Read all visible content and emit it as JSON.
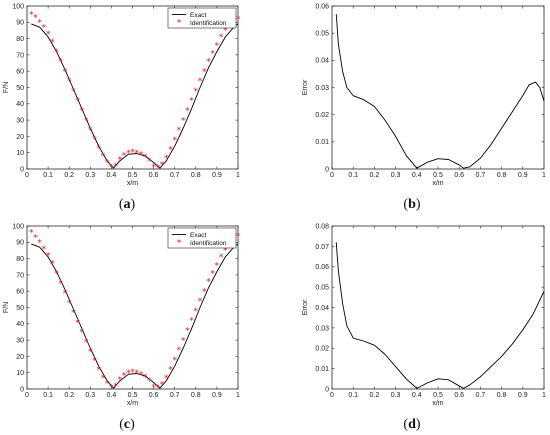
{
  "captions": [
    "a",
    "b",
    "c",
    "d"
  ],
  "colors": {
    "exact": "#000000",
    "ident": "#e31a1c",
    "axis": "#262626"
  },
  "chart_data": [
    {
      "type": "line",
      "caption": "a",
      "xlabel": "x/m",
      "ylabel": "F/N",
      "xlim": [
        0,
        1
      ],
      "ylim": [
        0,
        100
      ],
      "xticks": [
        0,
        0.1,
        0.2,
        0.3,
        0.4,
        0.5,
        0.6,
        0.7,
        0.8,
        0.9,
        1
      ],
      "yticks": [
        0,
        10,
        20,
        30,
        40,
        50,
        60,
        70,
        80,
        90,
        100
      ],
      "legend": "top-right",
      "series": [
        {
          "name": "Exact",
          "style": "line",
          "x": [
            0.02,
            0.06,
            0.1,
            0.14,
            0.18,
            0.22,
            0.26,
            0.3,
            0.34,
            0.38,
            0.41,
            0.44,
            0.48,
            0.52,
            0.56,
            0.6,
            0.63,
            0.66,
            0.7,
            0.74,
            0.78,
            0.82,
            0.86,
            0.9,
            0.94,
            0.98,
            1.0
          ],
          "y": [
            89,
            87,
            81,
            72,
            61,
            49,
            37,
            25,
            14,
            5,
            0.5,
            5,
            9,
            9.5,
            8,
            4,
            0.5,
            5,
            14,
            25,
            37,
            50,
            62,
            72,
            81,
            87,
            89
          ]
        },
        {
          "name": "Identification",
          "style": "marker",
          "x": [
            0.02,
            0.04,
            0.06,
            0.08,
            0.1,
            0.12,
            0.14,
            0.16,
            0.18,
            0.2,
            0.22,
            0.24,
            0.26,
            0.28,
            0.3,
            0.32,
            0.34,
            0.36,
            0.38,
            0.4,
            0.42,
            0.44,
            0.46,
            0.48,
            0.5,
            0.52,
            0.54,
            0.56,
            0.58,
            0.6,
            0.62,
            0.64,
            0.66,
            0.68,
            0.7,
            0.72,
            0.74,
            0.76,
            0.78,
            0.8,
            0.82,
            0.84,
            0.86,
            0.88,
            0.9,
            0.92,
            0.94,
            0.96,
            0.98,
            1.0
          ],
          "y": [
            95,
            93,
            90,
            87,
            83,
            78,
            72,
            66,
            60,
            54,
            48,
            42,
            36,
            30,
            24,
            18.5,
            13,
            8,
            4,
            1,
            2,
            6,
            8.5,
            10,
            10.5,
            10,
            9,
            7.5,
            5,
            1.5,
            1,
            3,
            7,
            12,
            18,
            24,
            30,
            36,
            42,
            48,
            54,
            60,
            66,
            71,
            76,
            81,
            85,
            88,
            90,
            92
          ]
        }
      ]
    },
    {
      "type": "line",
      "caption": "b",
      "xlabel": "x/m",
      "ylabel": "Error",
      "xlim": [
        0,
        1
      ],
      "ylim": [
        0,
        0.06
      ],
      "xticks": [
        0,
        0.1,
        0.2,
        0.3,
        0.4,
        0.5,
        0.6,
        0.7,
        0.8,
        0.9,
        1
      ],
      "yticks": [
        0,
        0.01,
        0.02,
        0.03,
        0.04,
        0.05,
        0.06
      ],
      "series": [
        {
          "style": "line",
          "x": [
            0.02,
            0.03,
            0.05,
            0.07,
            0.1,
            0.15,
            0.2,
            0.25,
            0.3,
            0.35,
            0.4,
            0.45,
            0.5,
            0.55,
            0.6,
            0.62,
            0.65,
            0.7,
            0.75,
            0.8,
            0.85,
            0.9,
            0.93,
            0.96,
            0.98,
            1.0
          ],
          "y": [
            0.057,
            0.046,
            0.036,
            0.03,
            0.027,
            0.0255,
            0.023,
            0.018,
            0.012,
            0.005,
            0.0003,
            0.0025,
            0.0038,
            0.0035,
            0.0015,
            0.0003,
            0.0008,
            0.004,
            0.009,
            0.015,
            0.021,
            0.027,
            0.031,
            0.032,
            0.03,
            0.025
          ]
        }
      ]
    },
    {
      "type": "line",
      "caption": "c",
      "xlabel": "x/m",
      "ylabel": "F/N",
      "xlim": [
        0,
        1
      ],
      "ylim": [
        0,
        100
      ],
      "xticks": [
        0,
        0.1,
        0.2,
        0.3,
        0.4,
        0.5,
        0.6,
        0.7,
        0.8,
        0.9,
        1
      ],
      "yticks": [
        0,
        10,
        20,
        30,
        40,
        50,
        60,
        70,
        80,
        90,
        100
      ],
      "legend": "top-right",
      "series": [
        {
          "name": "Exact",
          "style": "line",
          "x": [
            0.02,
            0.06,
            0.1,
            0.14,
            0.18,
            0.22,
            0.26,
            0.3,
            0.34,
            0.38,
            0.41,
            0.44,
            0.48,
            0.52,
            0.56,
            0.6,
            0.63,
            0.66,
            0.7,
            0.74,
            0.78,
            0.82,
            0.86,
            0.9,
            0.94,
            0.98,
            1.0
          ],
          "y": [
            89,
            87,
            81,
            72,
            61,
            49,
            37,
            25,
            14,
            5,
            0.5,
            5,
            9,
            9.5,
            8,
            4,
            0.5,
            5,
            14,
            25,
            37,
            50,
            62,
            72,
            81,
            87,
            89
          ]
        },
        {
          "name": "Identification",
          "style": "marker",
          "x": [
            0.02,
            0.04,
            0.06,
            0.08,
            0.1,
            0.12,
            0.14,
            0.16,
            0.18,
            0.2,
            0.22,
            0.24,
            0.26,
            0.28,
            0.3,
            0.32,
            0.34,
            0.36,
            0.38,
            0.4,
            0.42,
            0.44,
            0.46,
            0.48,
            0.5,
            0.52,
            0.54,
            0.56,
            0.58,
            0.6,
            0.62,
            0.64,
            0.66,
            0.68,
            0.7,
            0.72,
            0.74,
            0.76,
            0.78,
            0.8,
            0.82,
            0.84,
            0.86,
            0.88,
            0.9,
            0.92,
            0.94,
            0.96,
            0.98,
            1.0
          ],
          "y": [
            96,
            93,
            90,
            86,
            82,
            77,
            71,
            65,
            59,
            53,
            47,
            41,
            35,
            29,
            23,
            17.5,
            12,
            7,
            3.5,
            1,
            2,
            6,
            8.5,
            10,
            10.5,
            10,
            9,
            7.5,
            5,
            1.5,
            1,
            3,
            7,
            12,
            18,
            24,
            30,
            36,
            42,
            48,
            54,
            60,
            66,
            71,
            76,
            81,
            85,
            88,
            91,
            94
          ]
        }
      ]
    },
    {
      "type": "line",
      "caption": "d",
      "xlabel": "x/m",
      "ylabel": "Error",
      "xlim": [
        0,
        1
      ],
      "ylim": [
        0,
        0.08
      ],
      "xticks": [
        0,
        0.1,
        0.2,
        0.3,
        0.4,
        0.5,
        0.6,
        0.7,
        0.8,
        0.9,
        1
      ],
      "yticks": [
        0,
        0.01,
        0.02,
        0.03,
        0.04,
        0.05,
        0.06,
        0.07,
        0.08
      ],
      "series": [
        {
          "style": "line",
          "x": [
            0.02,
            0.03,
            0.05,
            0.07,
            0.1,
            0.15,
            0.2,
            0.25,
            0.3,
            0.35,
            0.4,
            0.45,
            0.5,
            0.55,
            0.6,
            0.62,
            0.65,
            0.7,
            0.75,
            0.8,
            0.85,
            0.9,
            0.95,
            1.0
          ],
          "y": [
            0.072,
            0.058,
            0.042,
            0.031,
            0.025,
            0.0235,
            0.0215,
            0.017,
            0.011,
            0.005,
            0.0003,
            0.003,
            0.005,
            0.0045,
            0.0015,
            0.0003,
            0.002,
            0.006,
            0.011,
            0.016,
            0.022,
            0.029,
            0.037,
            0.048
          ]
        }
      ]
    }
  ]
}
